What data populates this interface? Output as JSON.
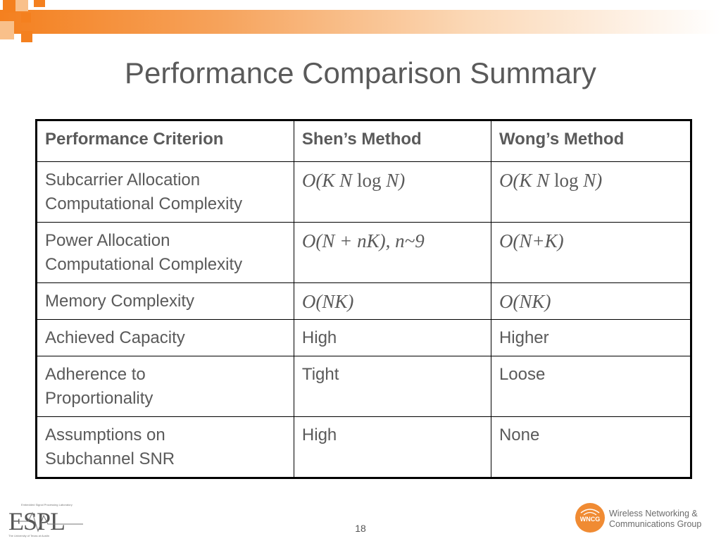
{
  "slide": {
    "title": "Performance Comparison Summary",
    "page_number": "18"
  },
  "table": {
    "headers": [
      "Performance Criterion",
      "Shen’s Method",
      "Wong’s Method"
    ],
    "rows": [
      {
        "criterion": [
          "Subcarrier Allocation",
          "Computational Complexity"
        ],
        "shen": "O(K N log N)",
        "wong": "O(K N log N)"
      },
      {
        "criterion": [
          "Power Allocation",
          "Computational Complexity"
        ],
        "shen": "O(N + nK), n~9",
        "wong": "O(N+K)"
      },
      {
        "criterion": [
          "Memory Complexity"
        ],
        "shen": "O(NK)",
        "wong": "O(NK)"
      },
      {
        "criterion": [
          "Achieved Capacity"
        ],
        "shen": "High",
        "wong": "Higher"
      },
      {
        "criterion": [
          "Adherence to",
          "Proportionality"
        ],
        "shen": "Tight",
        "wong": "Loose"
      },
      {
        "criterion": [
          "Assumptions on",
          "Subchannel SNR"
        ],
        "shen": "High",
        "wong": "None"
      }
    ]
  },
  "logos": {
    "espl": {
      "text": "ESPL",
      "subtitle": "Embedded Signal Processing Laboratory",
      "footer": "The University of Texas at Austin"
    },
    "wncg": {
      "badge": "WNCG",
      "line1": "Wireless Networking &",
      "line2": "Communications Group"
    }
  },
  "colors": {
    "accent": "#f4801f",
    "title": "#5a5a5a",
    "border": "#000000"
  }
}
